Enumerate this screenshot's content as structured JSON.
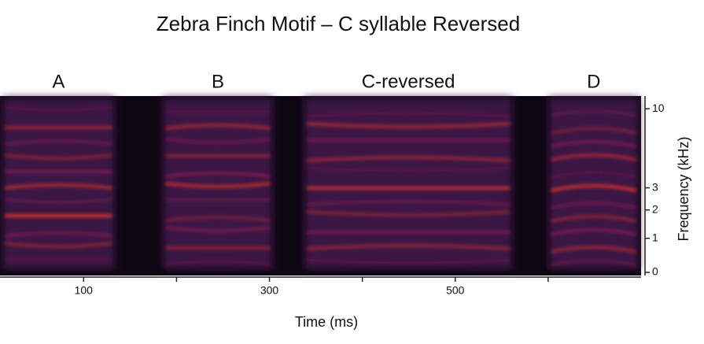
{
  "chart_data": {
    "type": "spectrogram",
    "title": "Zebra Finch Motif – C syllable Reversed",
    "xlabel": "Time (ms)",
    "ylabel": "Frequency (kHz)",
    "xlim": [
      10,
      700
    ],
    "xticks": [
      100,
      300,
      500
    ],
    "xminorticks": [
      200,
      400,
      600
    ],
    "ylim": [
      0,
      12
    ],
    "yticks": [
      0,
      1,
      2,
      3,
      10
    ],
    "yscale": "asinh",
    "background": "#0d0612",
    "color": "#e8352a",
    "segments": [
      {
        "label": "A",
        "start": 10,
        "end": 136
      },
      {
        "label": "B",
        "start": 183,
        "end": 306
      },
      {
        "label": "C-reversed",
        "start": 335,
        "end": 564
      },
      {
        "label": "D",
        "start": 598,
        "end": 700
      }
    ]
  }
}
